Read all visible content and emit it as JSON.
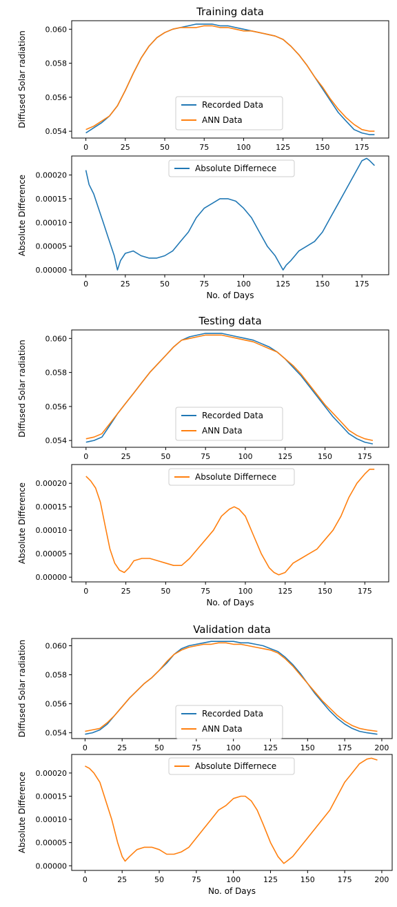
{
  "colors": {
    "recorded": "#1f77b4",
    "ann": "#ff7f0e",
    "axis": "#000000"
  },
  "chart_data": [
    {
      "type": "line",
      "title": "Training data",
      "xlabel": "",
      "ylabel": "Diffused Solar radiation",
      "xlim": [
        -9,
        192
      ],
      "ylim": [
        0.0536,
        0.0605
      ],
      "xticks": [
        0,
        25,
        50,
        75,
        100,
        125,
        150,
        175
      ],
      "yticks": [
        0.054,
        0.056,
        0.058,
        0.06
      ],
      "ytick_labels": [
        "0.054",
        "0.056",
        "0.058",
        "0.060"
      ],
      "legend": "lower-center",
      "series": [
        {
          "name": "Recorded Data",
          "color": "#1f77b4",
          "x": [
            0,
            5,
            10,
            15,
            20,
            25,
            30,
            35,
            40,
            45,
            50,
            55,
            60,
            65,
            70,
            75,
            80,
            85,
            90,
            95,
            100,
            105,
            110,
            115,
            120,
            125,
            130,
            135,
            140,
            145,
            150,
            155,
            160,
            165,
            170,
            175,
            180,
            183
          ],
          "y": [
            0.0539,
            0.0542,
            0.0545,
            0.0549,
            0.0555,
            0.0564,
            0.0574,
            0.0583,
            0.059,
            0.0595,
            0.0598,
            0.06,
            0.0601,
            0.0602,
            0.0603,
            0.0603,
            0.0603,
            0.0602,
            0.0602,
            0.0601,
            0.06,
            0.0599,
            0.0598,
            0.0597,
            0.0596,
            0.0594,
            0.059,
            0.0585,
            0.0579,
            0.0572,
            0.0565,
            0.0558,
            0.0551,
            0.0546,
            0.0541,
            0.0539,
            0.0538,
            0.0538
          ]
        },
        {
          "name": "ANN Data",
          "color": "#ff7f0e",
          "x": [
            0,
            5,
            10,
            15,
            20,
            25,
            30,
            35,
            40,
            45,
            50,
            55,
            60,
            65,
            70,
            75,
            80,
            85,
            90,
            95,
            100,
            105,
            110,
            115,
            120,
            125,
            130,
            135,
            140,
            145,
            150,
            155,
            160,
            165,
            170,
            175,
            180,
            183
          ],
          "y": [
            0.0541,
            0.0543,
            0.0546,
            0.0549,
            0.0555,
            0.0564,
            0.0574,
            0.0583,
            0.059,
            0.0595,
            0.0598,
            0.06,
            0.0601,
            0.0601,
            0.0601,
            0.0602,
            0.0602,
            0.0601,
            0.0601,
            0.06,
            0.0599,
            0.0599,
            0.0598,
            0.0597,
            0.0596,
            0.0594,
            0.059,
            0.0585,
            0.0579,
            0.0572,
            0.0566,
            0.0559,
            0.0553,
            0.0548,
            0.0544,
            0.0541,
            0.054,
            0.054
          ]
        }
      ]
    },
    {
      "type": "line",
      "title": "",
      "xlabel": "No. of Days",
      "ylabel": "Absolute Difference",
      "xlim": [
        -9,
        192
      ],
      "ylim": [
        -1e-05,
        0.00024
      ],
      "xticks": [
        0,
        25,
        50,
        75,
        100,
        125,
        150,
        175
      ],
      "yticks": [
        0,
        5e-05,
        0.0001,
        0.00015,
        0.0002
      ],
      "ytick_labels": [
        "0.00000",
        "0.00005",
        "0.00010",
        "0.00015",
        "0.00020"
      ],
      "legend": "upper-center",
      "series": [
        {
          "name": "Absolute Differnece",
          "color": "#1f77b4",
          "x": [
            0,
            2,
            5,
            8,
            11,
            14,
            16,
            18,
            20,
            22,
            25,
            30,
            35,
            40,
            45,
            50,
            55,
            60,
            65,
            70,
            75,
            80,
            85,
            90,
            95,
            100,
            105,
            110,
            115,
            120,
            125,
            127,
            130,
            135,
            140,
            145,
            150,
            155,
            160,
            165,
            170,
            175,
            178,
            180,
            183
          ],
          "y": [
            0.00021,
            0.00018,
            0.00016,
            0.00013,
            0.0001,
            7e-05,
            5e-05,
            3e-05,
            0.0,
            2e-05,
            3.5e-05,
            4e-05,
            3e-05,
            2.5e-05,
            2.5e-05,
            3e-05,
            4e-05,
            6e-05,
            8e-05,
            0.00011,
            0.00013,
            0.00014,
            0.00015,
            0.00015,
            0.000145,
            0.00013,
            0.00011,
            8e-05,
            5e-05,
            3e-05,
            0.0,
            1e-05,
            2e-05,
            4e-05,
            5e-05,
            6e-05,
            8e-05,
            0.00011,
            0.00014,
            0.00017,
            0.0002,
            0.00023,
            0.000235,
            0.00023,
            0.00022
          ]
        }
      ]
    },
    {
      "type": "line",
      "title": "Testing data",
      "xlabel": "",
      "ylabel": "Diffused Solar radiation",
      "xlim": [
        -9,
        190
      ],
      "ylim": [
        0.0536,
        0.0605
      ],
      "xticks": [
        0,
        25,
        50,
        75,
        100,
        125,
        150,
        175
      ],
      "yticks": [
        0.054,
        0.056,
        0.058,
        0.06
      ],
      "ytick_labels": [
        "0.054",
        "0.056",
        "0.058",
        "0.060"
      ],
      "legend": "lower-center",
      "series": [
        {
          "name": "Recorded Data",
          "color": "#1f77b4",
          "x": [
            0,
            5,
            10,
            15,
            20,
            25,
            30,
            35,
            40,
            45,
            50,
            55,
            60,
            65,
            70,
            75,
            80,
            85,
            90,
            95,
            100,
            105,
            110,
            115,
            120,
            125,
            130,
            135,
            140,
            145,
            150,
            155,
            160,
            165,
            170,
            175,
            180
          ],
          "y": [
            0.0539,
            0.054,
            0.0542,
            0.0549,
            0.0556,
            0.0562,
            0.0568,
            0.0574,
            0.058,
            0.0585,
            0.059,
            0.0595,
            0.0599,
            0.0601,
            0.0602,
            0.0603,
            0.0603,
            0.0603,
            0.0602,
            0.0601,
            0.06,
            0.0599,
            0.0597,
            0.0595,
            0.0592,
            0.0588,
            0.0583,
            0.0578,
            0.0572,
            0.0566,
            0.056,
            0.0554,
            0.0549,
            0.0544,
            0.0541,
            0.0539,
            0.0538
          ]
        },
        {
          "name": "ANN Data",
          "color": "#ff7f0e",
          "x": [
            0,
            5,
            10,
            15,
            20,
            25,
            30,
            35,
            40,
            45,
            50,
            55,
            60,
            65,
            70,
            75,
            80,
            85,
            90,
            95,
            100,
            105,
            110,
            115,
            120,
            125,
            130,
            135,
            140,
            145,
            150,
            155,
            160,
            165,
            170,
            175,
            180
          ],
          "y": [
            0.0541,
            0.0542,
            0.0544,
            0.055,
            0.0556,
            0.0562,
            0.0568,
            0.0574,
            0.058,
            0.0585,
            0.059,
            0.0595,
            0.0599,
            0.06,
            0.0601,
            0.0602,
            0.0602,
            0.0602,
            0.0601,
            0.06,
            0.0599,
            0.0598,
            0.0596,
            0.0594,
            0.0592,
            0.0588,
            0.0584,
            0.0579,
            0.0573,
            0.0567,
            0.0561,
            0.0556,
            0.0551,
            0.0546,
            0.0543,
            0.0541,
            0.054
          ]
        }
      ]
    },
    {
      "type": "line",
      "title": "",
      "xlabel": "No. of Days",
      "ylabel": "Absolute Difference",
      "xlim": [
        -9,
        190
      ],
      "ylim": [
        -1e-05,
        0.00024
      ],
      "xticks": [
        0,
        25,
        50,
        75,
        100,
        125,
        150,
        175
      ],
      "yticks": [
        0,
        5e-05,
        0.0001,
        0.00015,
        0.0002
      ],
      "ytick_labels": [
        "0.00000",
        "0.00005",
        "0.00010",
        "0.00015",
        "0.00020"
      ],
      "legend": "upper-center",
      "series": [
        {
          "name": "Absolute Differnece",
          "color": "#ff7f0e",
          "x": [
            0,
            3,
            6,
            9,
            12,
            15,
            18,
            21,
            24,
            27,
            30,
            35,
            40,
            45,
            50,
            55,
            60,
            65,
            70,
            75,
            80,
            85,
            90,
            93,
            96,
            100,
            105,
            110,
            115,
            118,
            121,
            125,
            130,
            135,
            140,
            145,
            150,
            155,
            160,
            165,
            170,
            175,
            178,
            181
          ],
          "y": [
            0.000215,
            0.000205,
            0.00019,
            0.00016,
            0.00011,
            6e-05,
            3e-05,
            1.5e-05,
            1e-05,
            2e-05,
            3.5e-05,
            4e-05,
            4e-05,
            3.5e-05,
            3e-05,
            2.5e-05,
            2.5e-05,
            4e-05,
            6e-05,
            8e-05,
            0.0001,
            0.00013,
            0.000145,
            0.00015,
            0.000145,
            0.00013,
            9e-05,
            5e-05,
            2e-05,
            1e-05,
            5e-06,
            1e-05,
            3e-05,
            4e-05,
            5e-05,
            6e-05,
            8e-05,
            0.0001,
            0.00013,
            0.00017,
            0.0002,
            0.00022,
            0.00023,
            0.00023
          ]
        }
      ]
    },
    {
      "type": "line",
      "title": "Validation data",
      "xlabel": "",
      "ylabel": "Diffused Solar radiation",
      "xlim": [
        -9,
        207
      ],
      "ylim": [
        0.0536,
        0.0605
      ],
      "xticks": [
        0,
        25,
        50,
        75,
        100,
        125,
        150,
        175,
        200
      ],
      "yticks": [
        0.054,
        0.056,
        0.058,
        0.06
      ],
      "ytick_labels": [
        "0.054",
        "0.056",
        "0.058",
        "0.060"
      ],
      "legend": "lower-center",
      "series": [
        {
          "name": "Recorded Data",
          "color": "#1f77b4",
          "x": [
            0,
            5,
            10,
            15,
            20,
            25,
            30,
            35,
            40,
            45,
            50,
            55,
            60,
            65,
            70,
            75,
            80,
            85,
            90,
            95,
            100,
            105,
            110,
            115,
            120,
            125,
            130,
            135,
            140,
            145,
            150,
            155,
            160,
            165,
            170,
            175,
            180,
            185,
            190,
            197
          ],
          "y": [
            0.0539,
            0.054,
            0.0542,
            0.0546,
            0.0552,
            0.0558,
            0.0564,
            0.0569,
            0.0574,
            0.0578,
            0.0583,
            0.0588,
            0.0594,
            0.0598,
            0.06,
            0.0601,
            0.0602,
            0.0603,
            0.0603,
            0.0603,
            0.0603,
            0.0602,
            0.0602,
            0.0601,
            0.06,
            0.0598,
            0.0596,
            0.0592,
            0.0587,
            0.0581,
            0.0574,
            0.0567,
            0.0561,
            0.0555,
            0.055,
            0.0546,
            0.0543,
            0.0541,
            0.054,
            0.0539
          ]
        },
        {
          "name": "ANN Data",
          "color": "#ff7f0e",
          "x": [
            0,
            5,
            10,
            15,
            20,
            25,
            30,
            35,
            40,
            45,
            50,
            55,
            60,
            65,
            70,
            75,
            80,
            85,
            90,
            95,
            100,
            105,
            110,
            115,
            120,
            125,
            130,
            135,
            140,
            145,
            150,
            155,
            160,
            165,
            170,
            175,
            180,
            185,
            190,
            197
          ],
          "y": [
            0.0541,
            0.0542,
            0.0543,
            0.0547,
            0.0552,
            0.0558,
            0.0564,
            0.0569,
            0.0574,
            0.0578,
            0.0583,
            0.0589,
            0.0594,
            0.0597,
            0.0599,
            0.06,
            0.0601,
            0.0601,
            0.0602,
            0.0602,
            0.0601,
            0.0601,
            0.06,
            0.0599,
            0.0598,
            0.0597,
            0.0595,
            0.0591,
            0.0586,
            0.058,
            0.0574,
            0.0568,
            0.0562,
            0.0557,
            0.0552,
            0.0548,
            0.0545,
            0.0543,
            0.0542,
            0.0541
          ]
        }
      ]
    },
    {
      "type": "line",
      "title": "",
      "xlabel": "No. of Days",
      "ylabel": "Absolute Difference",
      "xlim": [
        -9,
        207
      ],
      "ylim": [
        -1e-05,
        0.00024
      ],
      "xticks": [
        0,
        25,
        50,
        75,
        100,
        125,
        150,
        175,
        200
      ],
      "yticks": [
        0,
        5e-05,
        0.0001,
        0.00015,
        0.0002
      ],
      "ytick_labels": [
        "0.00000",
        "0.00005",
        "0.00010",
        "0.00015",
        "0.00020"
      ],
      "legend": "upper-center",
      "series": [
        {
          "name": "Absolute Differnece",
          "color": "#ff7f0e",
          "x": [
            0,
            3,
            6,
            10,
            14,
            18,
            22,
            25,
            27,
            30,
            35,
            40,
            45,
            50,
            55,
            60,
            65,
            70,
            75,
            80,
            85,
            90,
            95,
            100,
            105,
            108,
            112,
            116,
            120,
            125,
            130,
            134,
            136,
            140,
            145,
            150,
            155,
            160,
            165,
            170,
            175,
            180,
            185,
            190,
            193,
            197
          ],
          "y": [
            0.000215,
            0.00021,
            0.0002,
            0.00018,
            0.00014,
            0.0001,
            5e-05,
            2e-05,
            1e-05,
            2e-05,
            3.5e-05,
            4e-05,
            4e-05,
            3.5e-05,
            2.5e-05,
            2.5e-05,
            3e-05,
            4e-05,
            6e-05,
            8e-05,
            0.0001,
            0.00012,
            0.00013,
            0.000145,
            0.00015,
            0.00015,
            0.00014,
            0.00012,
            9e-05,
            5e-05,
            2e-05,
            5e-06,
            1e-05,
            2e-05,
            4e-05,
            6e-05,
            8e-05,
            0.0001,
            0.00012,
            0.00015,
            0.00018,
            0.0002,
            0.00022,
            0.00023,
            0.000232,
            0.000228
          ]
        }
      ]
    }
  ]
}
